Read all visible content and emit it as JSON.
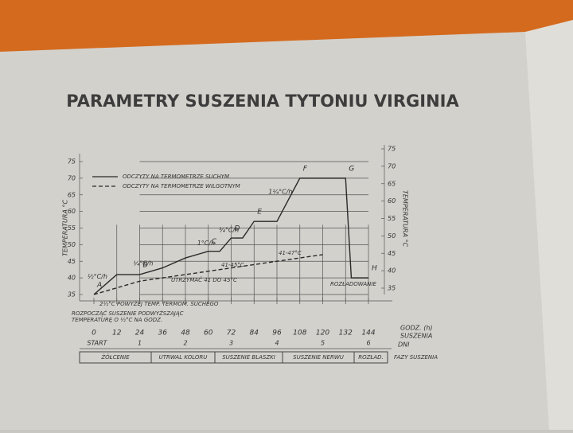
{
  "chart_data": {
    "type": "line",
    "title": "PARAMETRY SUSZENIA TYTONIU VIRGINIA",
    "y_label": "TEMPERATURA °C",
    "y2_label": "TEMPERATURA °C",
    "x_label": "GODZ. (h)",
    "x_label_2": "SUSZENIA",
    "xlim": [
      0,
      144
    ],
    "xticks": [
      0,
      12,
      24,
      36,
      48,
      60,
      72,
      84,
      96,
      108,
      120,
      132,
      144
    ],
    "ylim": [
      35,
      75
    ],
    "yticks": [
      35,
      40,
      45,
      50,
      55,
      60,
      65,
      70,
      75
    ],
    "y2lim": [
      35,
      75
    ],
    "y2ticks": [
      35,
      40,
      45,
      50,
      55,
      60,
      65,
      70,
      75
    ],
    "grid": true,
    "legend": "upper left",
    "series": [
      {
        "name": "ODCZYTY NA TERMOMETRZE SUCHYM",
        "color": "#2a2a2a",
        "dash": false,
        "x": [
          0,
          12,
          24,
          36,
          48,
          60,
          66,
          72,
          78,
          84,
          96,
          108,
          132,
          135,
          144
        ],
        "values": [
          35,
          41,
          41,
          43,
          46,
          48,
          48,
          52,
          52,
          57,
          57,
          70,
          70,
          40,
          40
        ],
        "point_labels": [
          "A",
          null,
          "B",
          null,
          null,
          "C",
          null,
          "D",
          null,
          "E",
          null,
          "F",
          "G",
          null,
          "H"
        ],
        "segment_labels": [
          "½°C/h",
          null,
          "¼°C/h",
          null,
          null,
          "1°C/h",
          null,
          "¾°C/h",
          null,
          null,
          "1¼°C/h",
          null,
          null,
          null,
          null
        ]
      },
      {
        "name": "ODCZYTY NA TERMOMETRZE WILGOTNYM",
        "color": "#2a2a2a",
        "dash": true,
        "x": [
          0,
          24,
          36,
          48,
          60,
          72,
          84,
          96,
          108,
          120
        ],
        "values": [
          35,
          39,
          40,
          41,
          42,
          43,
          44,
          45,
          46,
          47
        ]
      }
    ],
    "annotations": [
      "UTRZYMAĆ 41 DO 45°C",
      "41-45°C",
      "41-47°C",
      "ROZŁADOWANIE",
      "2½°C POWYŻEJ TEMP. TERMOM. SUCHEGO",
      "ROZPOCZĄĆ SUSZENIE PODWYŻSZAJĄC",
      "TEMPERATURĘ O ½°C NA GODZ."
    ],
    "days_label": "DNI",
    "days": [
      "START",
      "1",
      "2",
      "3",
      "4",
      "5",
      "6"
    ],
    "phases_label": "FAZY SUSZENIA",
    "phases": [
      "ŻÓŁCENIE",
      "UTRWAL KOLORU",
      "SUSZENIE BLASZKI",
      "SUSZENIE NERWU",
      "ROZŁAD."
    ]
  }
}
